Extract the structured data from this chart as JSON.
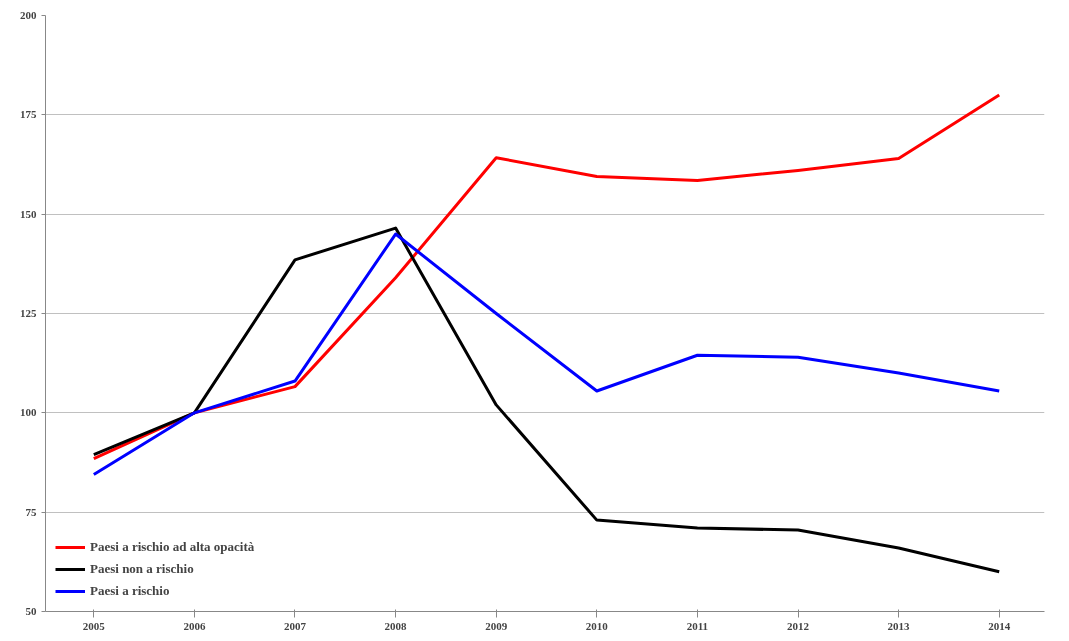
{
  "chart_data": {
    "type": "line",
    "categories": [
      "2005",
      "2006",
      "2007",
      "2008",
      "2009",
      "2010",
      "2011",
      "2012",
      "2013",
      "2014"
    ],
    "series": [
      {
        "name": "Paesi a rischio ad alta opacità",
        "color": "#ff0000",
        "values": [
          88.5,
          100,
          106.6,
          134,
          164.2,
          159.5,
          158.5,
          161,
          164,
          180
        ]
      },
      {
        "name": "Paesi non a rischio",
        "color": "#000000",
        "values": [
          89.5,
          100,
          138.5,
          146.5,
          102,
          73,
          71,
          70.5,
          66,
          60
        ]
      },
      {
        "name": "Paesi a rischio",
        "color": "#0000ff",
        "values": [
          84.5,
          100,
          108,
          145,
          125,
          105.5,
          114.5,
          114,
          110,
          105.5
        ]
      }
    ],
    "ylim": [
      50,
      200
    ],
    "yticks": [
      50,
      75,
      100,
      125,
      150,
      175,
      200
    ],
    "grid": "y",
    "legend": "bottom left",
    "marker": "none",
    "line_style": "solid"
  }
}
